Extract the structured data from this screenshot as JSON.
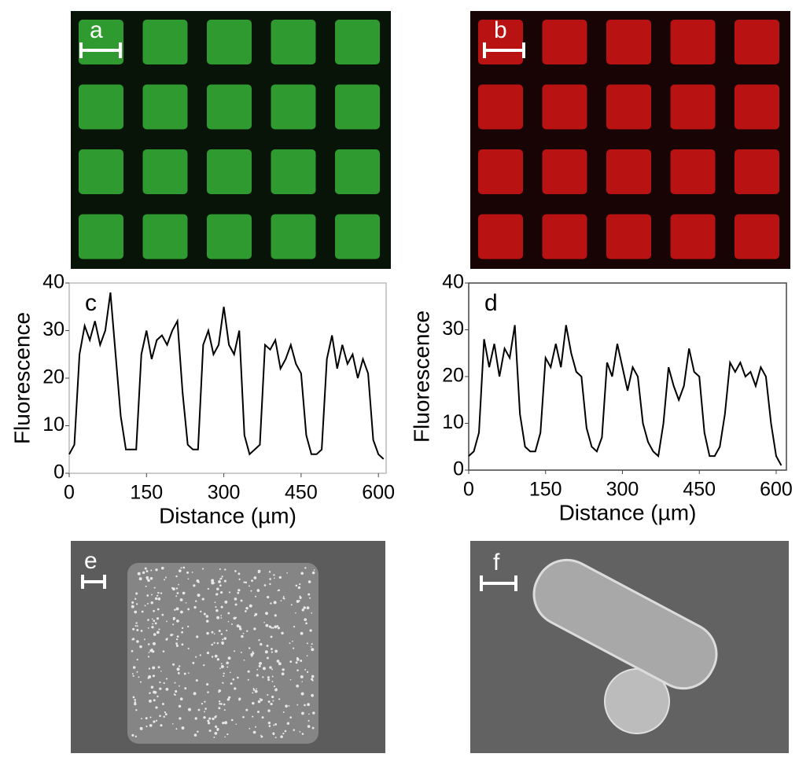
{
  "images": [
    {
      "label": "a"
    },
    {
      "label": "b"
    },
    {
      "label": "e"
    },
    {
      "label": "f"
    }
  ],
  "chart_data": [
    {
      "type": "line",
      "label": "c",
      "xlabel": "Distance (µm)",
      "ylabel": "Fluorescence",
      "xlim": [
        0,
        615
      ],
      "ylim": [
        0,
        40
      ],
      "xticks": [
        0,
        150,
        300,
        450,
        600
      ],
      "yticks": [
        0,
        10,
        20,
        30,
        40
      ],
      "x": [
        0,
        10,
        20,
        30,
        40,
        50,
        60,
        70,
        80,
        90,
        100,
        110,
        120,
        130,
        140,
        150,
        160,
        170,
        180,
        190,
        200,
        210,
        220,
        230,
        240,
        250,
        260,
        270,
        280,
        290,
        300,
        310,
        320,
        330,
        340,
        350,
        360,
        370,
        380,
        390,
        400,
        410,
        420,
        430,
        440,
        450,
        460,
        470,
        480,
        490,
        500,
        510,
        520,
        530,
        540,
        550,
        560,
        570,
        580,
        590,
        600,
        610
      ],
      "series": [
        {
          "color": "#000000",
          "values": [
            4,
            6,
            25,
            31,
            28,
            32,
            27,
            30,
            38,
            25,
            12,
            5,
            5,
            5,
            25,
            30,
            24,
            28,
            29,
            27,
            30,
            32,
            17,
            6,
            5,
            5,
            27,
            30,
            25,
            27,
            35,
            27,
            25,
            30,
            8,
            4,
            5,
            6,
            27,
            26,
            28,
            22,
            24,
            27,
            23,
            21,
            8,
            4,
            4,
            5,
            24,
            29,
            22,
            27,
            23,
            25,
            20,
            24,
            21,
            7,
            4,
            3
          ]
        }
      ]
    },
    {
      "type": "line",
      "label": "d",
      "xlabel": "Distance (µm)",
      "ylabel": "Fluorescence",
      "xlim": [
        0,
        620
      ],
      "ylim": [
        0,
        40
      ],
      "xticks": [
        0,
        150,
        300,
        450,
        600
      ],
      "yticks": [
        0,
        10,
        20,
        30,
        40
      ],
      "x": [
        0,
        10,
        20,
        30,
        40,
        50,
        60,
        70,
        80,
        90,
        100,
        110,
        120,
        130,
        140,
        150,
        160,
        170,
        180,
        190,
        200,
        210,
        220,
        230,
        240,
        250,
        260,
        270,
        280,
        290,
        300,
        310,
        320,
        330,
        340,
        350,
        360,
        370,
        380,
        390,
        400,
        410,
        420,
        430,
        440,
        450,
        460,
        470,
        480,
        490,
        500,
        510,
        520,
        530,
        540,
        550,
        560,
        570,
        580,
        590,
        600,
        610
      ],
      "series": [
        {
          "color": "#000000",
          "values": [
            3,
            4,
            8,
            28,
            22,
            27,
            20,
            26,
            24,
            31,
            12,
            5,
            4,
            4,
            8,
            24,
            22,
            27,
            22,
            31,
            25,
            21,
            20,
            9,
            5,
            4,
            7,
            23,
            20,
            27,
            22,
            17,
            22,
            20,
            10,
            6,
            4,
            3,
            10,
            22,
            18,
            15,
            18,
            26,
            21,
            20,
            8,
            3,
            3,
            5,
            12,
            23,
            21,
            23,
            20,
            21,
            18,
            22,
            20,
            10,
            3,
            1
          ]
        }
      ]
    }
  ]
}
